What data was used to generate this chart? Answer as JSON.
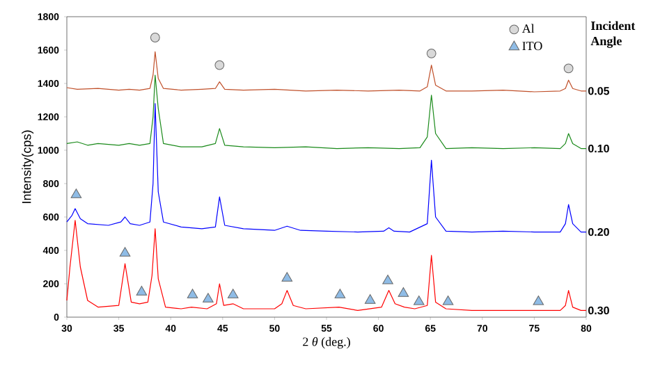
{
  "chart_data": {
    "type": "line",
    "xlabel": "2 *θ* (deg.)",
    "ylabel": "Intensity(cps)",
    "legend_title": "Incident Angle",
    "xlim": [
      30,
      80
    ],
    "xticks": [
      30,
      35,
      40,
      45,
      50,
      55,
      60,
      65,
      70,
      75,
      80
    ],
    "ylim": [
      0,
      1800
    ],
    "yticks": [
      0,
      200,
      400,
      600,
      800,
      1000,
      1200,
      1400,
      1600,
      1800
    ],
    "legend": "top right",
    "grid": false,
    "series": [
      {
        "name": "0.05",
        "color": "#c0502a",
        "x": [
          30,
          31,
          33,
          35,
          36,
          37,
          38,
          38.3,
          38.5,
          38.8,
          39.3,
          41,
          43,
          44.3,
          44.7,
          45.2,
          47,
          50,
          53,
          56,
          59,
          62,
          64,
          64.7,
          65.1,
          65.5,
          66.5,
          69,
          72,
          75,
          77.5,
          78,
          78.3,
          78.7,
          79.5,
          80
        ],
        "values": [
          1375,
          1365,
          1370,
          1360,
          1365,
          1360,
          1370,
          1450,
          1590,
          1430,
          1370,
          1360,
          1365,
          1370,
          1410,
          1365,
          1360,
          1365,
          1355,
          1360,
          1355,
          1360,
          1355,
          1380,
          1510,
          1390,
          1355,
          1355,
          1360,
          1350,
          1355,
          1370,
          1420,
          1370,
          1355,
          1355
        ]
      },
      {
        "name": "0.10",
        "color": "#1a8a1a",
        "x": [
          30,
          31,
          32,
          33,
          35,
          36,
          37,
          38,
          38.3,
          38.5,
          38.8,
          39.3,
          41,
          43,
          44.3,
          44.7,
          45.2,
          47,
          50,
          53,
          56,
          59,
          62,
          64,
          64.7,
          65.1,
          65.5,
          66.5,
          69,
          72,
          75,
          77.5,
          78,
          78.3,
          78.7,
          79.5,
          80
        ],
        "values": [
          1040,
          1050,
          1030,
          1040,
          1030,
          1040,
          1030,
          1040,
          1200,
          1450,
          1250,
          1040,
          1020,
          1020,
          1040,
          1130,
          1030,
          1020,
          1015,
          1020,
          1010,
          1015,
          1010,
          1015,
          1080,
          1330,
          1100,
          1010,
          1015,
          1010,
          1015,
          1010,
          1040,
          1100,
          1040,
          1010,
          1010
        ]
      },
      {
        "name": "0.20",
        "color": "#0000ff",
        "x": [
          30,
          30.5,
          30.8,
          31.3,
          32,
          34,
          35.2,
          35.6,
          36.1,
          37,
          38,
          38.3,
          38.5,
          38.8,
          39.3,
          41,
          43,
          44.3,
          44.7,
          45.2,
          47,
          50,
          51.2,
          52.5,
          55,
          58,
          60.5,
          61,
          61.5,
          63,
          64.7,
          65.1,
          65.5,
          66.5,
          69,
          72,
          75,
          77.5,
          78,
          78.3,
          78.7,
          79.5,
          80
        ],
        "values": [
          570,
          610,
          650,
          590,
          560,
          550,
          570,
          600,
          560,
          550,
          570,
          800,
          1280,
          750,
          570,
          540,
          530,
          540,
          720,
          550,
          530,
          520,
          545,
          520,
          515,
          510,
          515,
          535,
          515,
          510,
          560,
          940,
          600,
          515,
          510,
          515,
          510,
          510,
          560,
          675,
          560,
          510,
          510
        ]
      },
      {
        "name": "0.30",
        "color": "#ff0000",
        "x": [
          30,
          30.3,
          30.8,
          31.3,
          32,
          33,
          35,
          35.6,
          36.2,
          37,
          37.8,
          38.2,
          38.5,
          38.8,
          39.5,
          41,
          42,
          43.5,
          44.4,
          44.7,
          45.1,
          46,
          47,
          50,
          50.7,
          51.2,
          51.8,
          53,
          56.2,
          58,
          60.3,
          61,
          61.6,
          62.5,
          63.5,
          64.7,
          65.1,
          65.5,
          66.5,
          69,
          72,
          75,
          77.5,
          78,
          78.3,
          78.7,
          79.5,
          80
        ],
        "values": [
          100,
          300,
          580,
          300,
          100,
          60,
          70,
          320,
          90,
          80,
          90,
          250,
          530,
          230,
          60,
          50,
          60,
          50,
          80,
          200,
          70,
          80,
          50,
          50,
          80,
          160,
          70,
          50,
          60,
          40,
          60,
          160,
          80,
          60,
          50,
          70,
          370,
          90,
          50,
          40,
          40,
          40,
          40,
          70,
          160,
          60,
          40,
          40
        ]
      },
      {
        "name": "Al",
        "type": "scatter",
        "marker": "circle",
        "color": "#d9d9d9",
        "x": [
          38.5,
          44.7,
          65.1,
          78.3
        ],
        "values": [
          1675,
          1510,
          1580,
          1490
        ]
      },
      {
        "name": "ITO",
        "type": "scatter",
        "marker": "triangle",
        "color": "#8fbce6",
        "x": [
          30.9,
          35.6,
          37.2,
          42.1,
          43.6,
          46,
          51.2,
          56.3,
          59.2,
          60.9,
          62.4,
          63.9,
          66.7,
          75.4
        ],
        "values": [
          733,
          383,
          150,
          133,
          108,
          133,
          233,
          133,
          100,
          217,
          142,
          92,
          92,
          92
        ]
      }
    ]
  }
}
